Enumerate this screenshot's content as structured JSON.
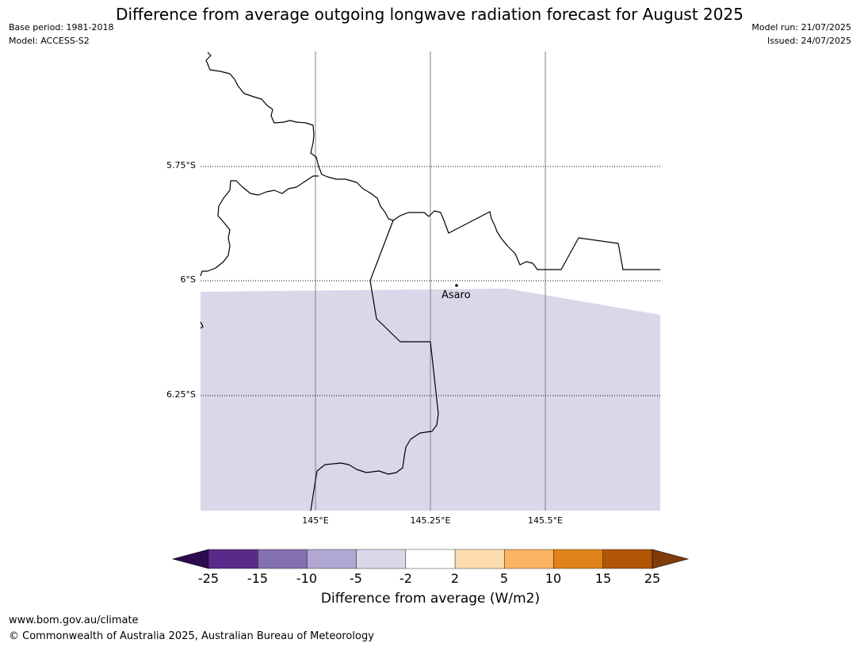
{
  "title": "Difference from average outgoing longwave radiation forecast for August 2025",
  "meta_left": {
    "base_period": "Base period: 1981-2018",
    "model": "Model: ACCESS-S2"
  },
  "meta_right": {
    "model_run": "Model run: 21/07/2025",
    "issued": "Issued: 24/07/2025"
  },
  "map": {
    "lat_labels": [
      "5.75°S",
      "6°S",
      "6.25°S"
    ],
    "lon_labels": [
      "145°E",
      "145.25°E",
      "145.5°E"
    ],
    "place": {
      "name": "Asaro"
    },
    "anomaly_fill_color": "#d8d8ea",
    "anomaly_category": "-5 to -2"
  },
  "colorbar": {
    "title": "Difference from average (W/m2)",
    "ticks": [
      "-25",
      "-15",
      "-10",
      "-5",
      "-2",
      "2",
      "5",
      "10",
      "15",
      "25"
    ],
    "colors": [
      "#2d0a4e",
      "#5a2a8a",
      "#8470b0",
      "#b0a8d2",
      "#d8d8ea",
      "#ffffff",
      "#fddcb0",
      "#fbb461",
      "#e08217",
      "#b25505",
      "#7f3b08"
    ]
  },
  "footer": {
    "url": "www.bom.gov.au/climate",
    "copyright": "© Commonwealth of Australia 2025, Australian Bureau of Meteorology"
  }
}
